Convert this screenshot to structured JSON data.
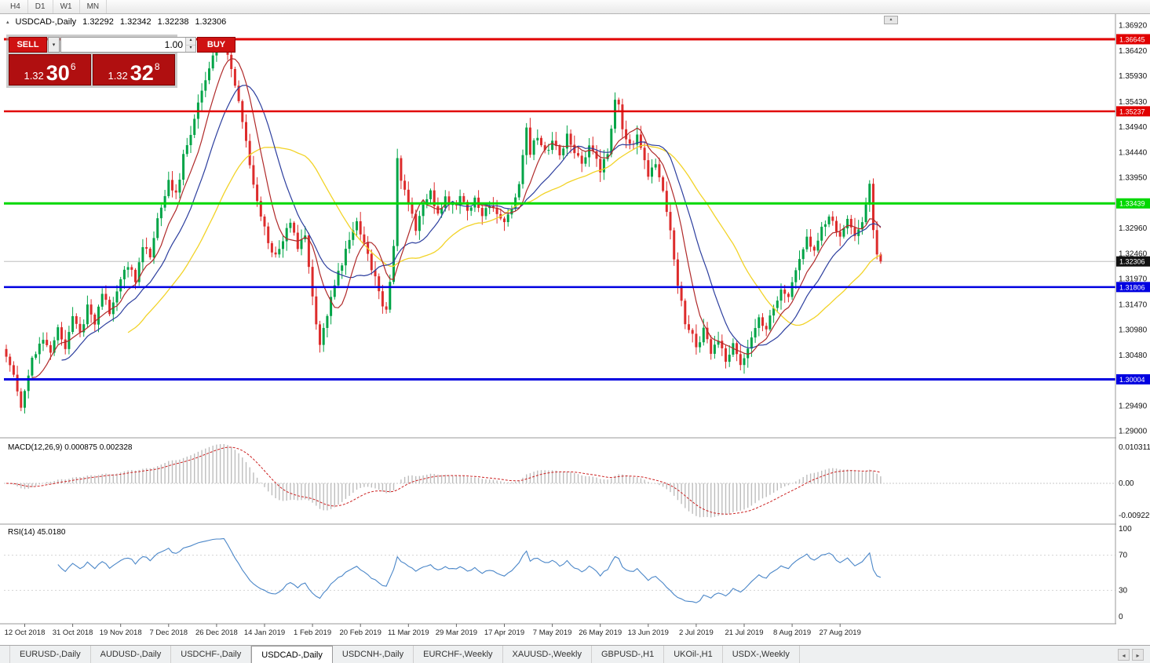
{
  "window": {
    "timeframes": [
      "H4",
      "D1",
      "W1",
      "MN"
    ]
  },
  "icons": {
    "expand_triangle": "▴",
    "dropdown_arrow": "▾",
    "spinner_up": "▴",
    "spinner_down": "▾",
    "scroll_up": "▴",
    "tabs_left": "◂",
    "tabs_right": "▸"
  },
  "chart": {
    "symbol_header": "USDCAD-,Daily",
    "ohlc": {
      "open": "1.32292",
      "high": "1.32342",
      "low": "1.32238",
      "close": "1.32306"
    },
    "trade_widget": {
      "sell_label": "SELL",
      "buy_label": "BUY",
      "volume": "1.00",
      "sell_price_base": "1.32",
      "sell_price_pips": "30",
      "sell_price_frac": "6",
      "buy_price_base": "1.32",
      "buy_price_pips": "32",
      "buy_price_frac": "8"
    },
    "price_axis": [
      "1.36920",
      "1.36420",
      "1.35930",
      "1.35430",
      "1.34940",
      "1.34440",
      "1.33950",
      "1.33450",
      "1.32960",
      "1.32460",
      "1.31970",
      "1.31470",
      "1.30980",
      "1.30480",
      "1.29990",
      "1.29490",
      "1.29000"
    ],
    "levels": [
      {
        "price": 1.36645,
        "label": "1.36645",
        "color": "#e10000",
        "width": 3
      },
      {
        "price": 1.35237,
        "label": "1.35237",
        "color": "#e10000",
        "width": 2.5
      },
      {
        "price": 1.33439,
        "label": "1.33439",
        "color": "#00d800",
        "width": 3
      },
      {
        "price": 1.31806,
        "label": "1.31806",
        "color": "#0000e0",
        "width": 2.5
      },
      {
        "price": 1.30004,
        "label": "1.30004",
        "color": "#0000e0",
        "width": 3
      }
    ],
    "current_price": {
      "value": 1.32306,
      "label": "1.32306"
    },
    "dates": [
      "12 Oct 2018",
      "31 Oct 2018",
      "19 Nov 2018",
      "7 Dec 2018",
      "26 Dec 2018",
      "14 Jan 2019",
      "1 Feb 2019",
      "20 Feb 2019",
      "11 Mar 2019",
      "29 Mar 2019",
      "17 Apr 2019",
      "7 May 2019",
      "26 May 2019",
      "13 Jun 2019",
      "2 Jul 2019",
      "21 Jul 2019",
      "8 Aug 2019",
      "27 Aug 2019"
    ],
    "macd": {
      "label": "MACD(12,26,9) 0.000875 0.002328",
      "axis": [
        "0.010311",
        "0.00",
        "-0.0092203"
      ]
    },
    "rsi": {
      "label": "RSI(14) 45.0180",
      "axis": [
        "100",
        "70",
        "30",
        "0"
      ]
    }
  },
  "chart_data": {
    "type": "candlestick",
    "symbol": "USDCAD-",
    "timeframe": "Daily",
    "price_range": [
      1.29,
      1.3692
    ],
    "num_candles": 238,
    "bar_step": 4.7,
    "date_label_indices": [
      5,
      18,
      31,
      44,
      57,
      70,
      83,
      96,
      109,
      122,
      135,
      148,
      161,
      174,
      187,
      200,
      213,
      226
    ],
    "close_anchors": [
      [
        0,
        1.305
      ],
      [
        2,
        1.3005
      ],
      [
        4,
        1.2945
      ],
      [
        5,
        1.2985
      ],
      [
        7,
        1.3045
      ],
      [
        10,
        1.308
      ],
      [
        12,
        1.3045
      ],
      [
        14,
        1.31
      ],
      [
        16,
        1.3065
      ],
      [
        18,
        1.312
      ],
      [
        20,
        1.3085
      ],
      [
        22,
        1.3145
      ],
      [
        24,
        1.311
      ],
      [
        26,
        1.3165
      ],
      [
        28,
        1.3135
      ],
      [
        31,
        1.319
      ],
      [
        33,
        1.3225
      ],
      [
        35,
        1.3195
      ],
      [
        37,
        1.3265
      ],
      [
        39,
        1.324
      ],
      [
        41,
        1.331
      ],
      [
        44,
        1.339
      ],
      [
        46,
        1.336
      ],
      [
        48,
        1.3435
      ],
      [
        50,
        1.3485
      ],
      [
        52,
        1.3535
      ],
      [
        54,
        1.3585
      ],
      [
        56,
        1.3635
      ],
      [
        58,
        1.3645
      ],
      [
        59,
        1.366
      ],
      [
        61,
        1.36
      ],
      [
        63,
        1.354
      ],
      [
        65,
        1.346
      ],
      [
        67,
        1.3385
      ],
      [
        69,
        1.332
      ],
      [
        71,
        1.327
      ],
      [
        73,
        1.324
      ],
      [
        75,
        1.3275
      ],
      [
        77,
        1.3305
      ],
      [
        79,
        1.326
      ],
      [
        81,
        1.3285
      ],
      [
        83,
        1.3165
      ],
      [
        85,
        1.3065
      ],
      [
        87,
        1.313
      ],
      [
        89,
        1.3185
      ],
      [
        91,
        1.323
      ],
      [
        93,
        1.327
      ],
      [
        95,
        1.3305
      ],
      [
        96,
        1.3285
      ],
      [
        98,
        1.3245
      ],
      [
        100,
        1.3195
      ],
      [
        102,
        1.315
      ],
      [
        103,
        1.3135
      ],
      [
        105,
        1.3255
      ],
      [
        106,
        1.3425
      ],
      [
        107,
        1.3385
      ],
      [
        109,
        1.3345
      ],
      [
        111,
        1.3295
      ],
      [
        113,
        1.3335
      ],
      [
        115,
        1.3365
      ],
      [
        117,
        1.3325
      ],
      [
        119,
        1.3355
      ],
      [
        121,
        1.3335
      ],
      [
        123,
        1.3355
      ],
      [
        125,
        1.333
      ],
      [
        127,
        1.3355
      ],
      [
        129,
        1.3315
      ],
      [
        131,
        1.3345
      ],
      [
        133,
        1.3325
      ],
      [
        135,
        1.3305
      ],
      [
        137,
        1.3335
      ],
      [
        139,
        1.3385
      ],
      [
        141,
        1.349
      ],
      [
        142,
        1.3445
      ],
      [
        144,
        1.3475
      ],
      [
        146,
        1.3445
      ],
      [
        148,
        1.3465
      ],
      [
        150,
        1.3435
      ],
      [
        152,
        1.3475
      ],
      [
        154,
        1.3445
      ],
      [
        156,
        1.3425
      ],
      [
        158,
        1.3455
      ],
      [
        160,
        1.3435
      ],
      [
        161,
        1.3405
      ],
      [
        163,
        1.3445
      ],
      [
        165,
        1.354
      ],
      [
        166,
        1.353
      ],
      [
        167,
        1.349
      ],
      [
        169,
        1.3455
      ],
      [
        171,
        1.3475
      ],
      [
        173,
        1.3435
      ],
      [
        174,
        1.3395
      ],
      [
        176,
        1.3425
      ],
      [
        178,
        1.3375
      ],
      [
        180,
        1.3285
      ],
      [
        182,
        1.3185
      ],
      [
        184,
        1.3115
      ],
      [
        186,
        1.3085
      ],
      [
        187,
        1.3065
      ],
      [
        189,
        1.3095
      ],
      [
        191,
        1.305
      ],
      [
        193,
        1.3075
      ],
      [
        195,
        1.304
      ],
      [
        197,
        1.3065
      ],
      [
        199,
        1.303
      ],
      [
        200,
        1.3048
      ],
      [
        202,
        1.3085
      ],
      [
        204,
        1.3125
      ],
      [
        206,
        1.3095
      ],
      [
        208,
        1.3145
      ],
      [
        210,
        1.3175
      ],
      [
        212,
        1.3155
      ],
      [
        213,
        1.3195
      ],
      [
        215,
        1.3235
      ],
      [
        217,
        1.3275
      ],
      [
        219,
        1.3245
      ],
      [
        221,
        1.3295
      ],
      [
        223,
        1.3325
      ],
      [
        225,
        1.3295
      ],
      [
        226,
        1.3275
      ],
      [
        228,
        1.3315
      ],
      [
        230,
        1.3285
      ],
      [
        232,
        1.3305
      ],
      [
        233,
        1.3335
      ],
      [
        234,
        1.3375
      ],
      [
        235,
        1.3295
      ],
      [
        236,
        1.3245
      ],
      [
        237,
        1.32306
      ]
    ],
    "indicators": {
      "ma_periods": {
        "fast_red": 8,
        "mid_blue": 16,
        "slow_yellow": 34
      },
      "macd_params": [
        12,
        26,
        9
      ],
      "rsi_period": 14
    },
    "colors": {
      "up": "#00a447",
      "down": "#dd2c2c",
      "ma_fast": "#b02a2a",
      "ma_mid": "#2c3e9e",
      "ma_slow": "#f2d327",
      "macd_hist": "#bdbdbd",
      "macd_signal": "#cc2222",
      "rsi": "#4a86c8",
      "current_tag": "#111111"
    }
  },
  "tabs": {
    "active": "USDCAD-,Daily",
    "items": [
      {
        "label": "EURUSD-,Daily"
      },
      {
        "label": "AUDUSD-,Daily"
      },
      {
        "label": "USDCHF-,Daily"
      },
      {
        "label": "USDCAD-,Daily"
      },
      {
        "label": "USDCNH-,Daily"
      },
      {
        "label": "EURCHF-,Weekly"
      },
      {
        "label": "XAUUSD-,Weekly"
      },
      {
        "label": "GBPUSD-,H1"
      },
      {
        "label": "UKOil-,H1"
      },
      {
        "label": "USDX-,Weekly"
      }
    ]
  }
}
